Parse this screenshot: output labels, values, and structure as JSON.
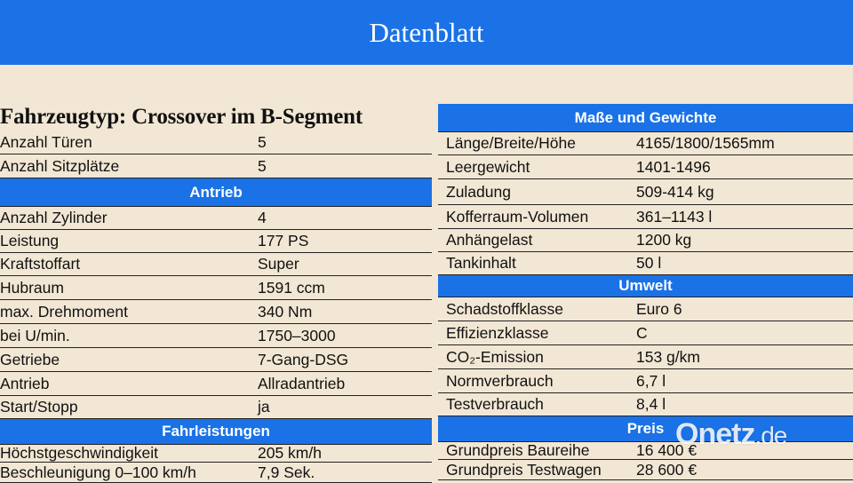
{
  "header": {
    "title": "Datenblatt"
  },
  "left": {
    "title": "Fahrzeugtyp: Crossover im B-Segment",
    "general": [
      {
        "k": "Anzahl Türen",
        "v": "5"
      },
      {
        "k": "Anzahl Sitzplätze",
        "v": "5"
      }
    ],
    "antrieb_header": "Antrieb",
    "antrieb": [
      {
        "k": "Anzahl Zylinder",
        "v": "4"
      },
      {
        "k": "Leistung",
        "v": "177 PS"
      },
      {
        "k": "Kraftstoffart",
        "v": "Super"
      },
      {
        "k": "Hubraum",
        "v": "1591 ccm"
      },
      {
        "k": "max. Drehmoment",
        "v": "340 Nm"
      },
      {
        "k": "bei U/min.",
        "v": "1750–3000"
      },
      {
        "k": "Getriebe",
        "v": "7-Gang-DSG"
      },
      {
        "k": "Antrieb",
        "v": "Allradantrieb"
      },
      {
        "k": "Start/Stopp",
        "v": "ja"
      }
    ],
    "fahrleistungen_header": "Fahrleistungen",
    "fahrleistungen": [
      {
        "k": "Höchstgeschwindigkeit",
        "v": "205 km/h"
      },
      {
        "k": "Beschleunigung 0–100 km/h",
        "v": "7,9 Sek."
      }
    ]
  },
  "right": {
    "masse_header": "Maße und Gewichte",
    "masse": [
      {
        "k": "Länge/Breite/Höhe",
        "v": "4165/1800/1565mm"
      },
      {
        "k": "Leergewicht",
        "v": "1401-1496"
      },
      {
        "k": "Zuladung",
        "v": "509-414 kg"
      },
      {
        "k": "Kofferraum-Volumen",
        "v": "361–1143 l"
      },
      {
        "k": "Anhängelast",
        "v": "1200 kg"
      },
      {
        "k": "Tankinhalt",
        "v": "50 l"
      }
    ],
    "umwelt_header": "Umwelt",
    "umwelt": [
      {
        "k": "Schadstoffklasse",
        "v": "Euro 6"
      },
      {
        "k": "Effizienzklasse",
        "v": "C"
      },
      {
        "k": "CO₂-Emission",
        "v": "153 g/km"
      },
      {
        "k": "Normverbrauch",
        "v": "6,7 l"
      },
      {
        "k": "Testverbrauch",
        "v": "8,4 l"
      }
    ],
    "preis_header": "Preis",
    "preis": [
      {
        "k": "Grundpreis Baureihe",
        "v": "16 400 €"
      },
      {
        "k": "Grundpreis Testwagen",
        "v": "28 600 €"
      }
    ]
  },
  "watermark": {
    "brand": "Onetz",
    "tld": ".de"
  }
}
